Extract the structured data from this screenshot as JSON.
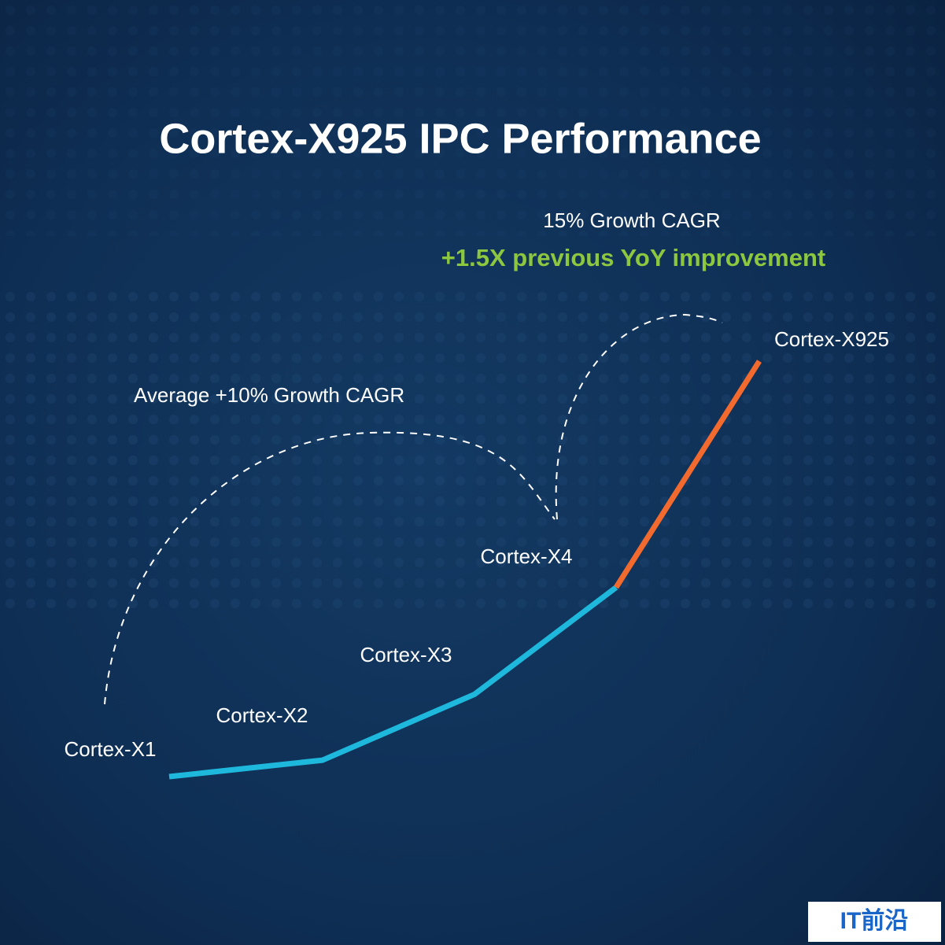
{
  "chart_data": {
    "type": "line",
    "title": "Cortex-X925 IPC Performance",
    "annotations": [
      "15% Growth CAGR",
      "+1.5X previous YoY improvement",
      "Average +10% Growth CAGR"
    ],
    "categories": [
      "Cortex-X1",
      "Cortex-X2",
      "Cortex-X3",
      "Cortex-X4",
      "Cortex-X925"
    ],
    "series": [
      {
        "color": "#1fb8dd",
        "values": [
          100,
          104,
          120,
          146,
          null
        ]
      },
      {
        "color": "#f26a2e",
        "values": [
          null,
          null,
          null,
          146,
          201
        ]
      }
    ]
  },
  "watermark": "IT前沿"
}
